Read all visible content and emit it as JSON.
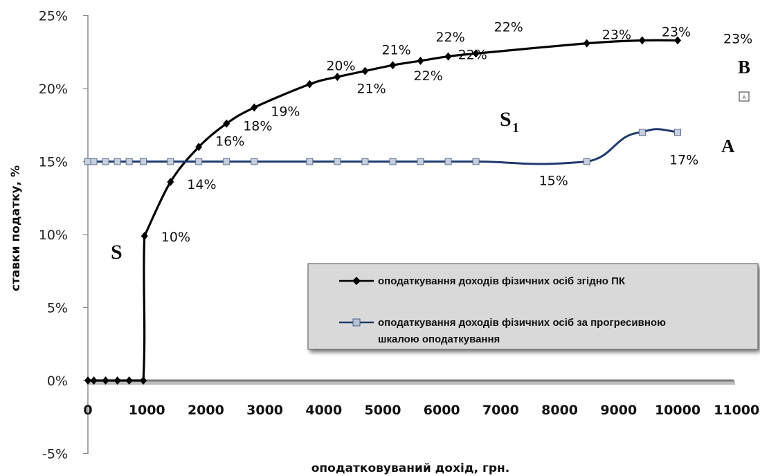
{
  "chart_data": {
    "type": "line",
    "xlabel": "оподатковуваний дохід, грн.",
    "ylabel": "ставки податку, %",
    "xlim": [
      0,
      11000
    ],
    "ylim": [
      -5,
      25
    ],
    "x_ticks": [
      "0",
      "1000",
      "2000",
      "3000",
      "4000",
      "5000",
      "6000",
      "7000",
      "8000",
      "9000",
      "10000",
      "11000"
    ],
    "y_ticks": [
      "-5%",
      "0%",
      "5%",
      "10%",
      "15%",
      "20%",
      "25%"
    ],
    "series": [
      {
        "name": "оподаткування доходів фізичних осіб згідно ПК",
        "color": "#000000",
        "marker": "diamond",
        "x": [
          0,
          100,
          300,
          500,
          700,
          940,
          960,
          1400,
          1880,
          2350,
          2820,
          3760,
          4230,
          4700,
          5170,
          5640,
          6110,
          6580,
          8460,
          9400,
          10000
        ],
        "y": [
          0,
          0,
          0,
          0,
          0,
          0,
          9.9,
          13.6,
          16.0,
          17.6,
          18.7,
          20.3,
          20.8,
          21.2,
          21.6,
          21.9,
          22.2,
          22.4,
          23.1,
          23.3,
          23.3
        ]
      },
      {
        "name": "оподаткування доходів фізичних осіб за прогресивною шкалою оподаткування",
        "color": "#1f3a6e",
        "marker": "square",
        "x": [
          0,
          100,
          300,
          500,
          700,
          940,
          1400,
          1880,
          2350,
          2820,
          3760,
          4230,
          4700,
          5170,
          5640,
          6110,
          6580,
          8460,
          9400,
          10000
        ],
        "y": [
          15,
          15,
          15,
          15,
          15,
          15,
          15,
          15,
          15,
          15,
          15,
          15,
          15,
          15,
          15,
          15,
          15,
          15,
          17,
          17
        ]
      }
    ],
    "data_labels": [
      "10%",
      "14%",
      "16%",
      "18%",
      "19%",
      "20%",
      "21%",
      "21%",
      "22%",
      "22%",
      "22%",
      "22%",
      "23%",
      "23%",
      "23%",
      "15%",
      "17%"
    ],
    "annotations": {
      "S": "S",
      "S1": "S",
      "S1_sub": "1",
      "A": "A",
      "B": "B",
      "box_mark": "A"
    },
    "legend_position": "bottom-right",
    "grid": false
  }
}
